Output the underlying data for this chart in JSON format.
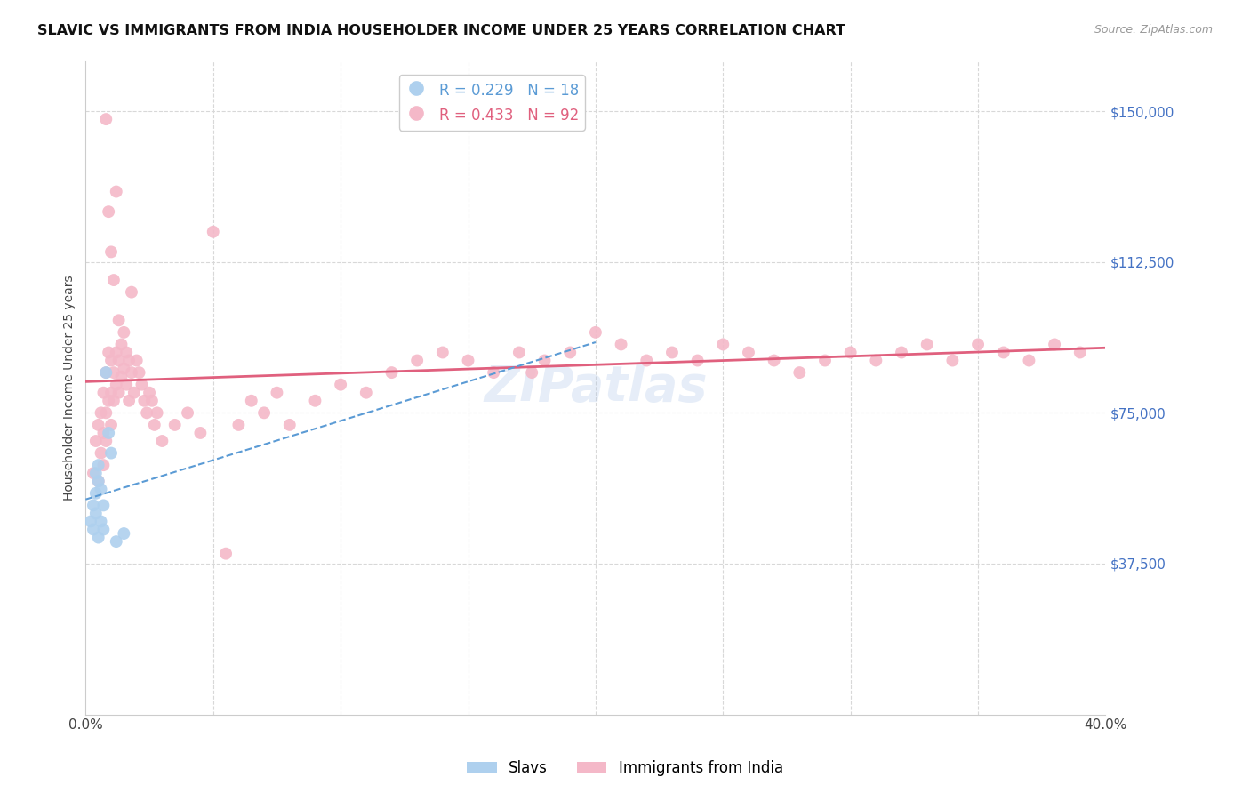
{
  "title": "SLAVIC VS IMMIGRANTS FROM INDIA HOUSEHOLDER INCOME UNDER 25 YEARS CORRELATION CHART",
  "source": "Source: ZipAtlas.com",
  "ylabel": "Householder Income Under 25 years",
  "xlim": [
    0.0,
    0.4
  ],
  "ylim": [
    0,
    162500
  ],
  "yticks": [
    37500,
    75000,
    112500,
    150000
  ],
  "ytick_labels": [
    "$37,500",
    "$75,000",
    "$112,500",
    "$150,000"
  ],
  "background_color": "#ffffff",
  "grid_color": "#d8d8d8",
  "watermark": "ZIPatlas",
  "slavs_color": "#aed0ee",
  "india_color": "#f4b8c8",
  "slavs_line_color": "#5b9bd5",
  "india_line_color": "#e0607e",
  "slavs_R": 0.229,
  "slavs_N": 18,
  "india_R": 0.433,
  "india_N": 92,
  "slavs_x": [
    0.002,
    0.003,
    0.003,
    0.004,
    0.004,
    0.004,
    0.005,
    0.005,
    0.005,
    0.006,
    0.006,
    0.007,
    0.007,
    0.008,
    0.009,
    0.01,
    0.012,
    0.015
  ],
  "slavs_y": [
    48000,
    52000,
    46000,
    60000,
    55000,
    50000,
    62000,
    58000,
    44000,
    56000,
    48000,
    52000,
    46000,
    85000,
    70000,
    65000,
    43000,
    45000
  ],
  "india_x": [
    0.003,
    0.004,
    0.005,
    0.005,
    0.006,
    0.006,
    0.007,
    0.007,
    0.007,
    0.008,
    0.008,
    0.008,
    0.009,
    0.009,
    0.01,
    0.01,
    0.01,
    0.011,
    0.011,
    0.012,
    0.012,
    0.013,
    0.013,
    0.014,
    0.014,
    0.015,
    0.015,
    0.016,
    0.016,
    0.017,
    0.017,
    0.018,
    0.019,
    0.02,
    0.021,
    0.022,
    0.023,
    0.024,
    0.025,
    0.026,
    0.027,
    0.028,
    0.03,
    0.035,
    0.04,
    0.045,
    0.055,
    0.06,
    0.065,
    0.07,
    0.075,
    0.08,
    0.09,
    0.1,
    0.11,
    0.12,
    0.13,
    0.14,
    0.15,
    0.16,
    0.17,
    0.175,
    0.18,
    0.19,
    0.2,
    0.21,
    0.22,
    0.23,
    0.24,
    0.25,
    0.26,
    0.27,
    0.28,
    0.29,
    0.3,
    0.31,
    0.32,
    0.33,
    0.34,
    0.35,
    0.36,
    0.37,
    0.38,
    0.39,
    0.05,
    0.018,
    0.012,
    0.008,
    0.009,
    0.01,
    0.011,
    0.013
  ],
  "india_y": [
    60000,
    68000,
    72000,
    58000,
    75000,
    65000,
    80000,
    70000,
    62000,
    85000,
    75000,
    68000,
    90000,
    78000,
    88000,
    80000,
    72000,
    85000,
    78000,
    90000,
    82000,
    88000,
    80000,
    92000,
    84000,
    95000,
    86000,
    90000,
    82000,
    88000,
    78000,
    85000,
    80000,
    88000,
    85000,
    82000,
    78000,
    75000,
    80000,
    78000,
    72000,
    75000,
    68000,
    72000,
    75000,
    70000,
    40000,
    72000,
    78000,
    75000,
    80000,
    72000,
    78000,
    82000,
    80000,
    85000,
    88000,
    90000,
    88000,
    85000,
    90000,
    85000,
    88000,
    90000,
    95000,
    92000,
    88000,
    90000,
    88000,
    92000,
    90000,
    88000,
    85000,
    88000,
    90000,
    88000,
    90000,
    92000,
    88000,
    92000,
    90000,
    88000,
    92000,
    90000,
    120000,
    105000,
    130000,
    148000,
    125000,
    115000,
    108000,
    98000
  ]
}
